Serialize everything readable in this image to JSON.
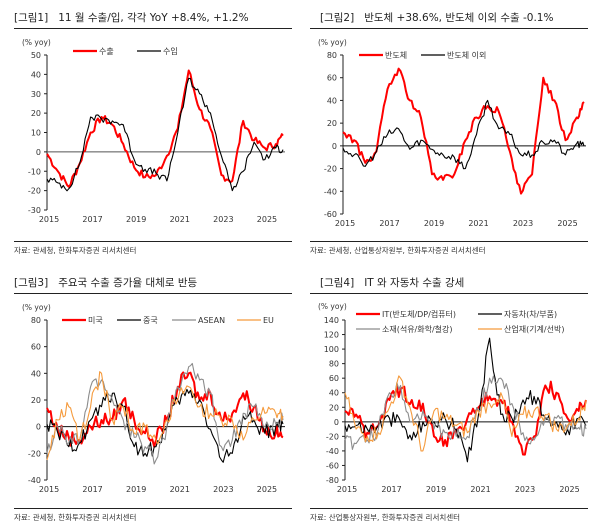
{
  "panels": [
    {
      "num": "[그림1]",
      "title": "11 월 수출/입, 각각 YoY +8.4%, +1.2%",
      "unit": "(% yoy)",
      "source": "자료: 관세청, 한화투자증권 리서치센터"
    },
    {
      "num": "[그림2]",
      "title": "반도체 +38.6%, 반도체 이외 수출 -0.1%",
      "unit": "(% yoy)",
      "source": "자료: 관세청, 산업통상자원부, 한화투자증권 리서치센터"
    },
    {
      "num": "[그림3]",
      "title": "주요국 수출 증가율 대체로 반등",
      "unit": "(% yoy)",
      "source": "자료: 관세청, 한화투자증권 리서치센터"
    },
    {
      "num": "[그림4]",
      "title": "IT 와 자동차 수출 강세",
      "unit": "(% yoy)",
      "source": "자료: 산업통상자원부, 한화투자증권 리서치센터"
    }
  ],
  "chart_data": [
    {
      "type": "line",
      "title": "11 월 수출/입, 각각 YoY +8.4%, +1.2%",
      "ylabel": "(% yoy)",
      "ylim": [
        -30,
        50
      ],
      "yticks": [
        50,
        40,
        30,
        20,
        10,
        0,
        -10,
        -20,
        -30
      ],
      "xlim": [
        2015,
        2025.92
      ],
      "xticks": [
        "2015",
        "2017",
        "2019",
        "2021",
        "2023",
        "2025"
      ],
      "legend": "top",
      "x": [
        2015.0,
        2015.5,
        2016.0,
        2016.5,
        2017.0,
        2017.5,
        2018.0,
        2018.5,
        2019.0,
        2019.5,
        2020.0,
        2020.5,
        2021.0,
        2021.5,
        2022.0,
        2022.5,
        2023.0,
        2023.5,
        2024.0,
        2024.5,
        2025.0,
        2025.5,
        2025.83
      ],
      "series": [
        {
          "name": "수출",
          "color": "#ff0000",
          "values": [
            -1,
            -10,
            -18,
            -6,
            10,
            18,
            14,
            4,
            -8,
            -13,
            -12,
            -2,
            12,
            42,
            22,
            12,
            -12,
            -15,
            16,
            6,
            2,
            4,
            8.4
          ]
        },
        {
          "name": "수입",
          "color": "#000000",
          "values": [
            -14,
            -16,
            -19,
            -6,
            18,
            17,
            16,
            14,
            -4,
            -9,
            -11,
            -15,
            10,
            38,
            30,
            20,
            -2,
            -20,
            -10,
            5,
            -4,
            2,
            1.2
          ]
        }
      ]
    },
    {
      "type": "line",
      "title": "반도체 +38.6%, 반도체 이외 수출 -0.1%",
      "ylabel": "(% yoy)",
      "ylim": [
        -60,
        80
      ],
      "yticks": [
        80,
        60,
        40,
        20,
        0,
        -20,
        -40,
        -60
      ],
      "xlim": [
        2015,
        2025.92
      ],
      "xticks": [
        "2015",
        "2017",
        "2019",
        "2021",
        "2023",
        "2025"
      ],
      "legend": "top",
      "x": [
        2015.0,
        2015.5,
        2016.0,
        2016.5,
        2017.0,
        2017.5,
        2018.0,
        2018.5,
        2019.0,
        2019.5,
        2020.0,
        2020.5,
        2021.0,
        2021.5,
        2022.0,
        2022.5,
        2023.0,
        2023.5,
        2024.0,
        2024.5,
        2025.0,
        2025.5,
        2025.83
      ],
      "series": [
        {
          "name": "반도체",
          "color": "#ff0000",
          "values": [
            12,
            5,
            -15,
            -5,
            50,
            68,
            40,
            25,
            -25,
            -30,
            -25,
            5,
            25,
            35,
            30,
            -5,
            -42,
            -25,
            60,
            40,
            5,
            25,
            38.6
          ]
        },
        {
          "name": "반도체 이외",
          "color": "#000000",
          "values": [
            -2,
            -8,
            -18,
            -5,
            10,
            15,
            -3,
            5,
            -3,
            -8,
            -10,
            -20,
            10,
            40,
            15,
            10,
            -8,
            -8,
            3,
            5,
            -8,
            2,
            -0.1
          ]
        }
      ]
    },
    {
      "type": "line",
      "title": "주요국 수출 증가율 대체로 반등",
      "ylabel": "(% yoy)",
      "ylim": [
        -40,
        80
      ],
      "yticks": [
        80,
        60,
        40,
        20,
        0,
        -20,
        -40
      ],
      "xlim": [
        2015,
        2025.92
      ],
      "xticks": [
        "2015",
        "2017",
        "2019",
        "2021",
        "2023",
        "2025"
      ],
      "legend": "top",
      "x": [
        2015.0,
        2015.5,
        2016.0,
        2016.5,
        2017.0,
        2017.5,
        2018.0,
        2018.5,
        2019.0,
        2019.5,
        2020.0,
        2020.5,
        2021.0,
        2021.5,
        2022.0,
        2022.5,
        2023.0,
        2023.5,
        2024.0,
        2024.5,
        2025.0,
        2025.5,
        2025.83
      ],
      "series": [
        {
          "name": "미국",
          "color": "#ff0000",
          "values": [
            14,
            -2,
            -8,
            -10,
            0,
            5,
            5,
            20,
            5,
            -5,
            -10,
            5,
            30,
            40,
            20,
            25,
            5,
            10,
            25,
            15,
            -2,
            -5,
            -8
          ]
        },
        {
          "name": "중국",
          "color": "#000000",
          "values": [
            2,
            -5,
            -15,
            -12,
            5,
            15,
            25,
            15,
            -15,
            -20,
            -15,
            0,
            20,
            25,
            20,
            -2,
            -25,
            -20,
            8,
            5,
            -5,
            0,
            2
          ]
        },
        {
          "name": "ASEAN",
          "color": "#8c8c8c",
          "values": [
            -20,
            0,
            -12,
            -10,
            30,
            35,
            20,
            5,
            -8,
            -15,
            -25,
            0,
            30,
            45,
            35,
            25,
            -15,
            -10,
            10,
            15,
            0,
            2,
            5
          ]
        },
        {
          "name": "EU",
          "color": "#f59a3c",
          "values": [
            -25,
            5,
            15,
            -10,
            15,
            40,
            5,
            15,
            -5,
            0,
            -10,
            5,
            20,
            30,
            15,
            10,
            5,
            5,
            -10,
            5,
            10,
            10,
            8
          ]
        }
      ]
    },
    {
      "type": "line",
      "title": "IT 와 자동차 수출 강세",
      "ylabel": "(% yoy)",
      "ylim": [
        -80,
        140
      ],
      "yticks": [
        140,
        120,
        100,
        80,
        60,
        40,
        20,
        0,
        -20,
        -40,
        -60,
        -80
      ],
      "xlim": [
        2015,
        2025.92
      ],
      "xticks": [
        "2015",
        "2017",
        "2019",
        "2021",
        "2023",
        "2025"
      ],
      "legend": "top",
      "x": [
        2015.0,
        2015.5,
        2016.0,
        2016.5,
        2017.0,
        2017.5,
        2018.0,
        2018.5,
        2019.0,
        2019.5,
        2020.0,
        2020.5,
        2021.0,
        2021.5,
        2022.0,
        2022.5,
        2023.0,
        2023.5,
        2024.0,
        2024.5,
        2025.0,
        2025.5,
        2025.83
      ],
      "series": [
        {
          "name": "IT(반도체/DP/컴퓨터)",
          "color": "#ff0000",
          "values": [
            15,
            10,
            -15,
            -5,
            30,
            45,
            30,
            25,
            -20,
            -25,
            -15,
            5,
            20,
            35,
            30,
            0,
            -45,
            -20,
            50,
            40,
            5,
            15,
            30
          ]
        },
        {
          "name": "자동차(차/부품)",
          "color": "#000000",
          "values": [
            -5,
            -5,
            -10,
            -5,
            5,
            0,
            -25,
            0,
            0,
            5,
            -10,
            -55,
            10,
            115,
            10,
            5,
            30,
            35,
            5,
            0,
            -10,
            5,
            -5
          ]
        },
        {
          "name": "소재(석유/화학/철강)",
          "color": "#8c8c8c",
          "values": [
            -25,
            -30,
            -25,
            -10,
            40,
            50,
            0,
            15,
            -10,
            -15,
            -20,
            -20,
            15,
            60,
            60,
            25,
            -15,
            -25,
            5,
            5,
            -10,
            -8,
            -10
          ]
        },
        {
          "name": "산업재(기계/선박)",
          "color": "#f59a3c",
          "values": [
            40,
            -10,
            -20,
            -15,
            20,
            60,
            10,
            -40,
            15,
            5,
            -5,
            -15,
            15,
            25,
            40,
            -20,
            10,
            15,
            10,
            -10,
            -5,
            5,
            30
          ]
        }
      ]
    }
  ]
}
